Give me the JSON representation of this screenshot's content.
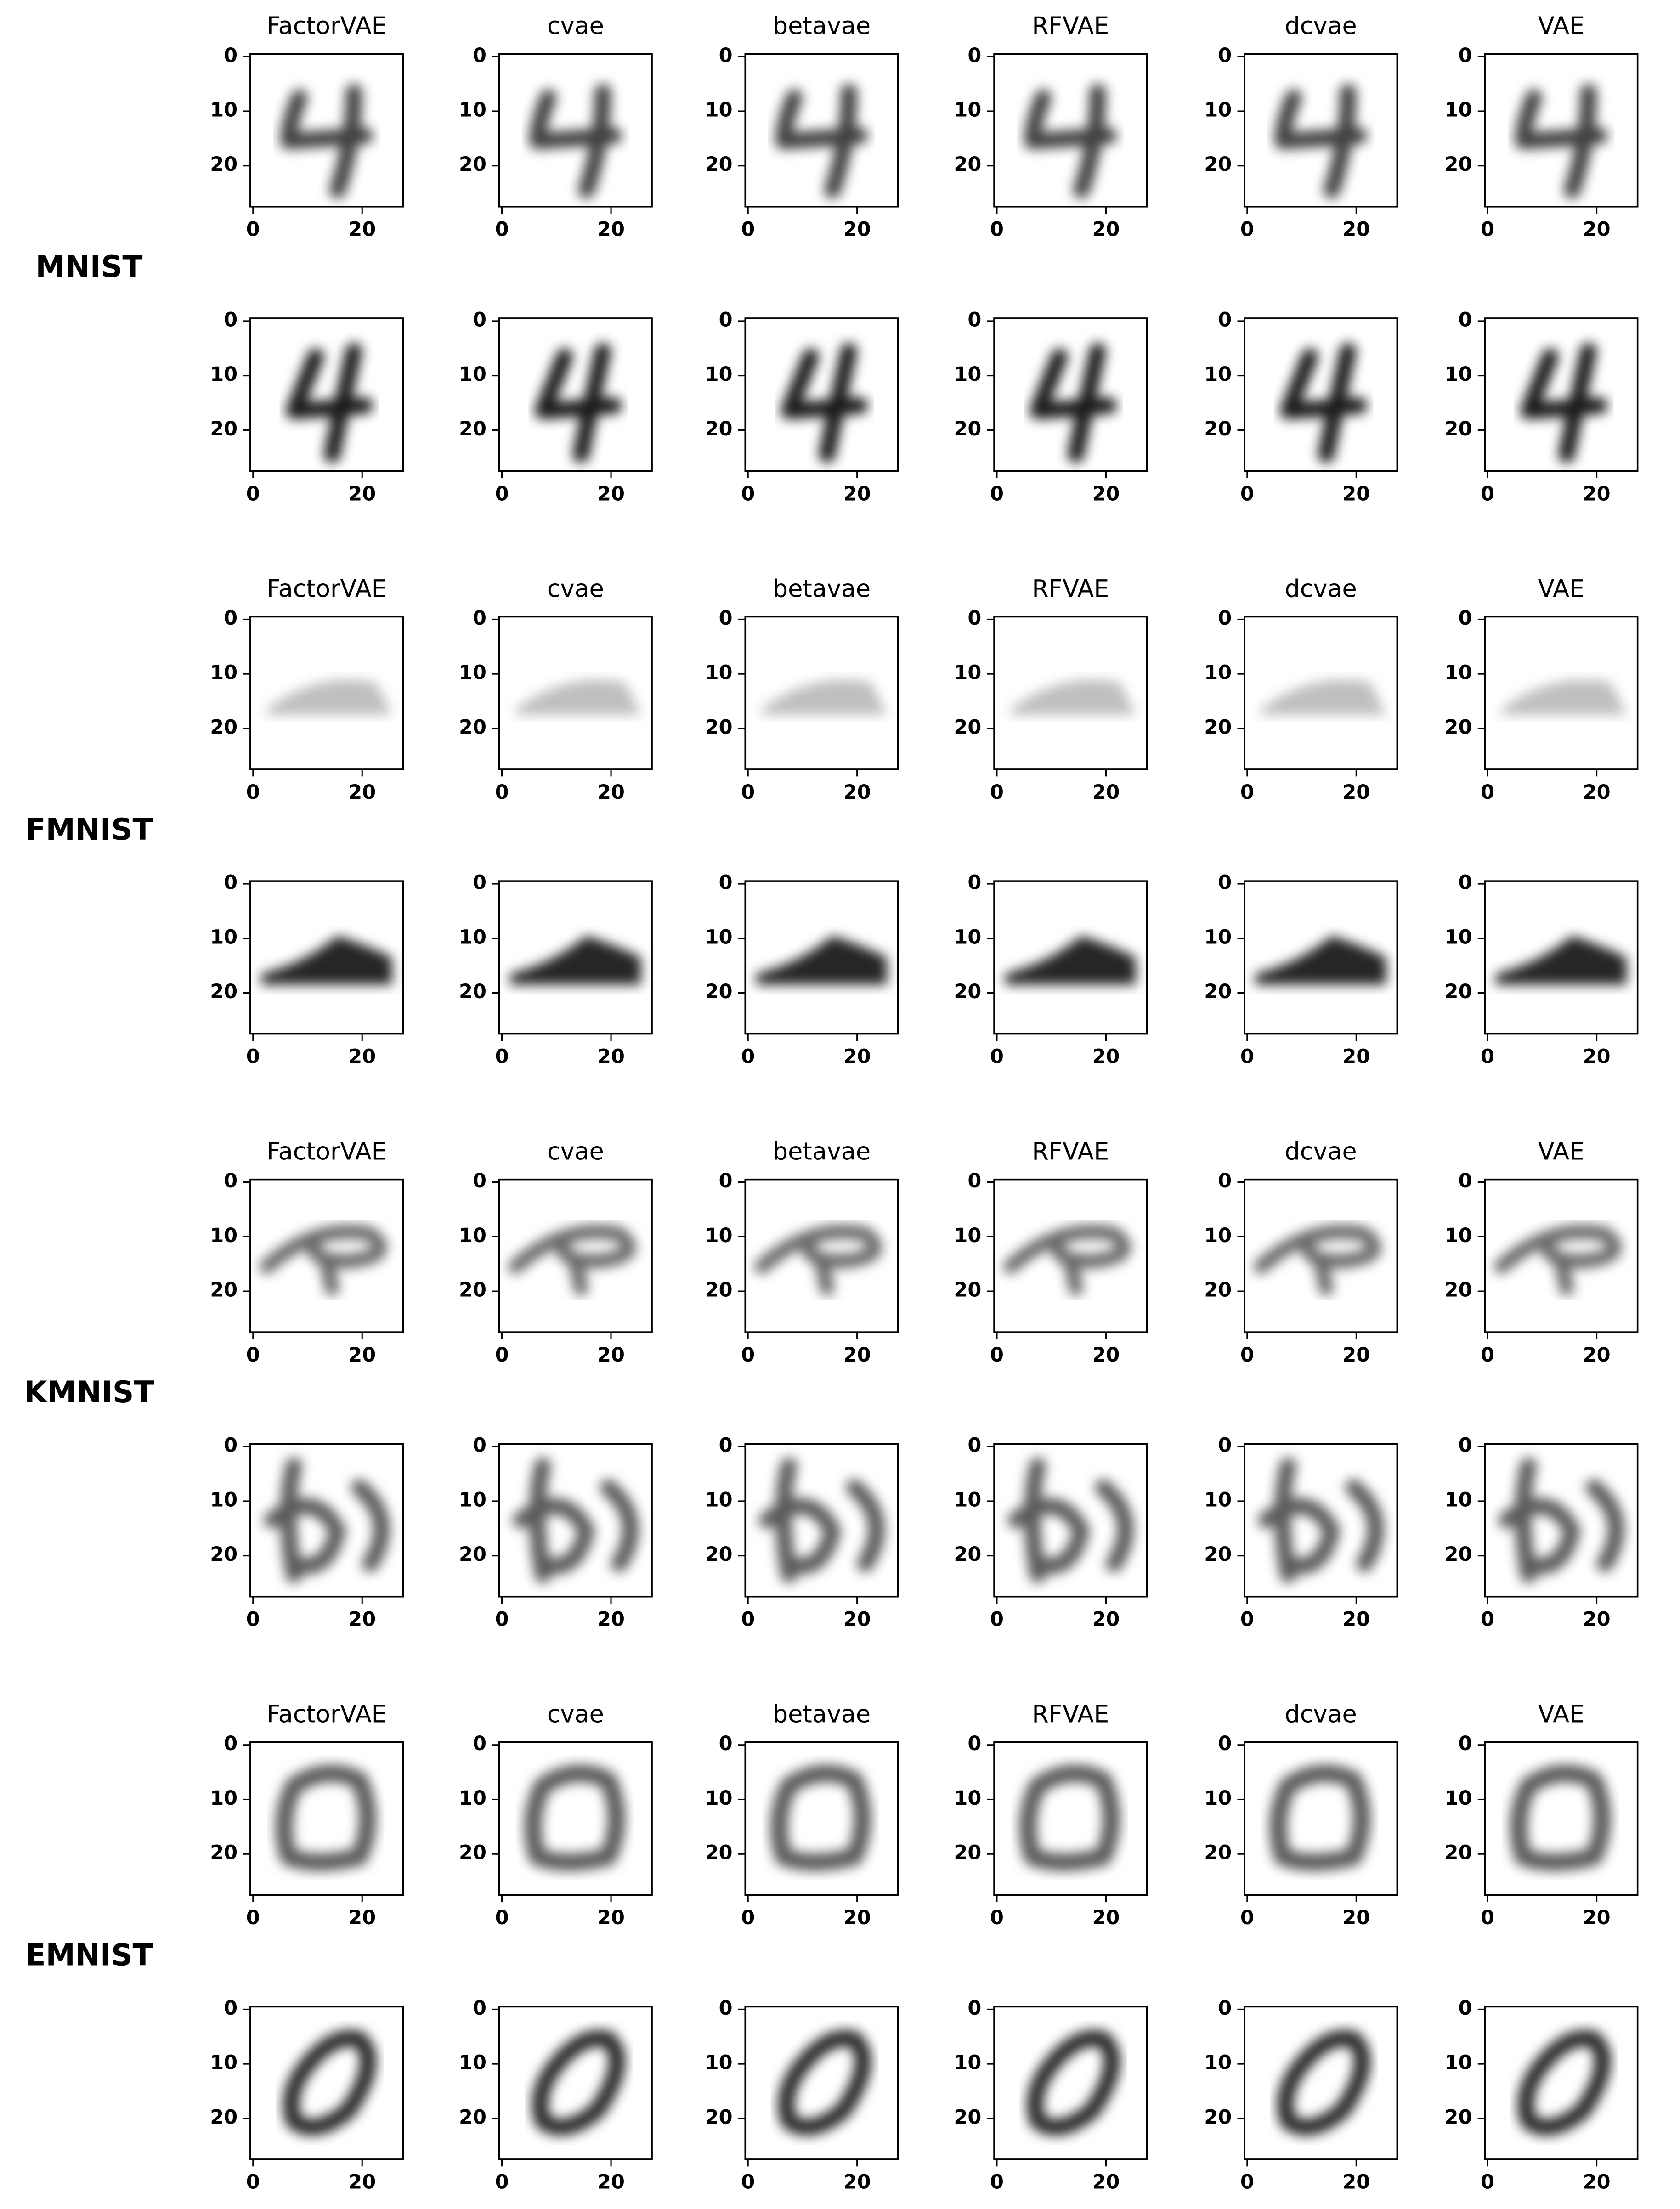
{
  "datasets": [
    {
      "name": "MNIST"
    },
    {
      "name": "FMNIST"
    },
    {
      "name": "KMNIST"
    },
    {
      "name": "EMNIST"
    }
  ],
  "models": [
    "FactorVAE",
    "cvae",
    "betavae",
    "RFVAE",
    "dcvae",
    "VAE"
  ],
  "yticks": [
    0,
    10,
    20
  ],
  "xticks": [
    0,
    20
  ]
}
